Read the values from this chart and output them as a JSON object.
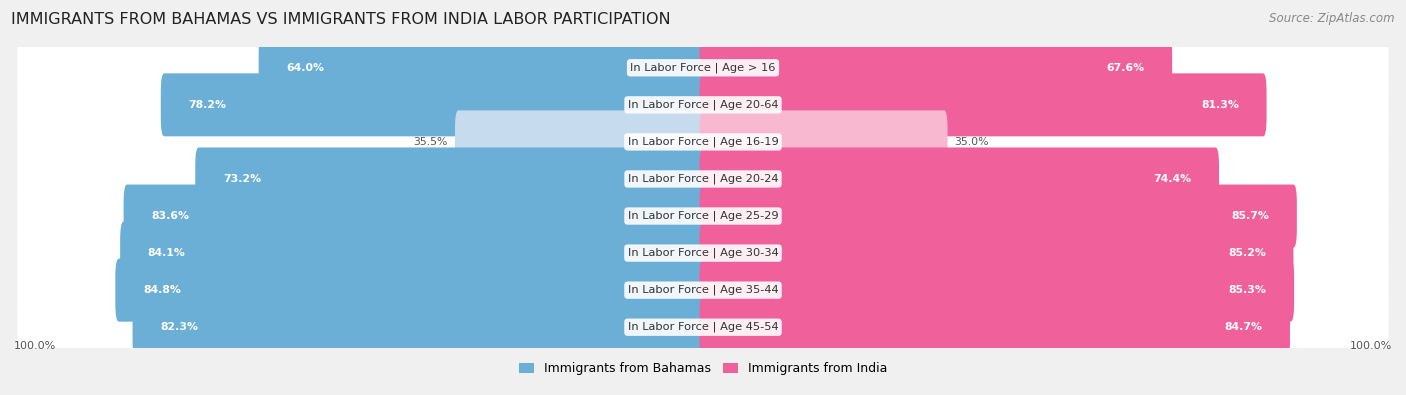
{
  "title": "IMMIGRANTS FROM BAHAMAS VS IMMIGRANTS FROM INDIA LABOR PARTICIPATION",
  "source": "Source: ZipAtlas.com",
  "categories": [
    "In Labor Force | Age > 16",
    "In Labor Force | Age 20-64",
    "In Labor Force | Age 16-19",
    "In Labor Force | Age 20-24",
    "In Labor Force | Age 25-29",
    "In Labor Force | Age 30-34",
    "In Labor Force | Age 35-44",
    "In Labor Force | Age 45-54"
  ],
  "bahamas_values": [
    64.0,
    78.2,
    35.5,
    73.2,
    83.6,
    84.1,
    84.8,
    82.3
  ],
  "india_values": [
    67.6,
    81.3,
    35.0,
    74.4,
    85.7,
    85.2,
    85.3,
    84.7
  ],
  "bahamas_color": "#6baed6",
  "bahamas_color_light": "#c6dcee",
  "india_color": "#f0609a",
  "india_color_light": "#f7b8d0",
  "background_color": "#f0f0f0",
  "row_bg_color": "#ffffff",
  "max_value": 100.0,
  "title_fontsize": 11.5,
  "label_fontsize": 8.2,
  "value_fontsize": 7.8,
  "legend_fontsize": 9,
  "source_fontsize": 8.5,
  "light_threshold": 50
}
